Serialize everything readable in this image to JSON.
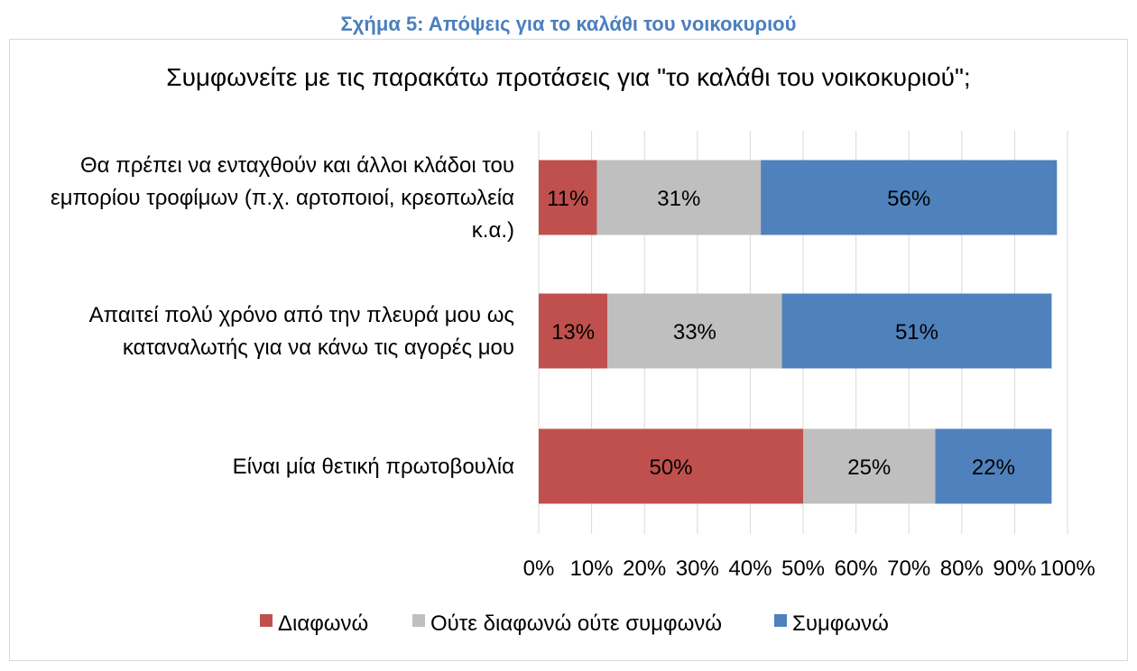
{
  "figure_caption": "Σχήμα 5: Απόψεις για το καλάθι του νοικοκυριού",
  "chart_data": {
    "type": "bar",
    "orientation": "horizontal",
    "stacked": true,
    "title": "Συμφωνείτε με τις παρακάτω προτάσεις για \"το καλάθι του νοικοκυριού\";",
    "categories": [
      [
        "Θα πρέπει να ενταχθούν και άλλοι κλάδοι του",
        "εμπορίου τροφίμων (π.χ. αρτοποιοί, κρεοπωλεία",
        "κ.α.)"
      ],
      [
        "Απαιτεί πολύ χρόνο από την πλευρά μου ως",
        "καταναλωτής για να κάνω τις αγορές μου"
      ],
      [
        "Είναι μία θετική πρωτοβουλία"
      ]
    ],
    "series": [
      {
        "name": "Διαφωνώ",
        "color": "#c0504d",
        "values": [
          11,
          13,
          50
        ],
        "labels": [
          "11%",
          "13%",
          "50%"
        ]
      },
      {
        "name": "Ούτε διαφωνώ ούτε συμφωνώ",
        "color": "#bfbfbf",
        "values": [
          31,
          33,
          25
        ],
        "labels": [
          "31%",
          "33%",
          "25%"
        ]
      },
      {
        "name": "Συμφωνώ",
        "color": "#4f81bd",
        "values": [
          56,
          51,
          22
        ],
        "labels": [
          "56%",
          "51%",
          "22%"
        ]
      }
    ],
    "xlim": [
      0,
      100
    ],
    "xticks": [
      0,
      10,
      20,
      30,
      40,
      50,
      60,
      70,
      80,
      90,
      100
    ],
    "xtick_labels": [
      "0%",
      "10%",
      "20%",
      "30%",
      "40%",
      "50%",
      "60%",
      "70%",
      "80%",
      "90%",
      "100%"
    ],
    "grid": "vertical",
    "legend": "bottom"
  }
}
